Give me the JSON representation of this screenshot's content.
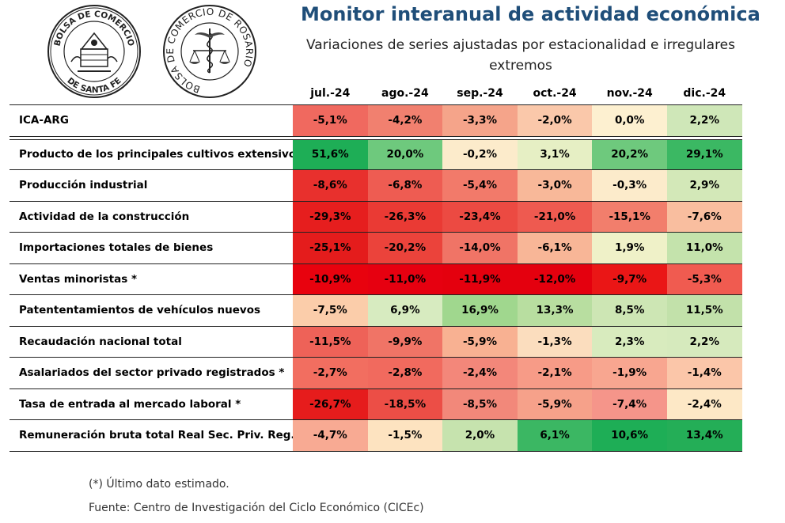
{
  "logos": [
    {
      "name": "bolsa-santa-fe-logo",
      "text_top": "BOLSA DE COMERCIO",
      "text_bottom": "DE SANTA FE"
    },
    {
      "name": "bolsa-rosario-logo",
      "text_ring": "BOLSA DE COMERCIO DE ROSARIO"
    }
  ],
  "header": {
    "title": "Monitor interanual de actividad económica",
    "subtitle": "Variaciones de series ajustadas por estacionalidad e irregulares extremos"
  },
  "chart_data": {
    "type": "heatmap",
    "title": "Monitor interanual de actividad económica",
    "subtitle": "Variaciones de series ajustadas por estacionalidad e irregulares extremos",
    "columns": [
      "jul.-24",
      "ago.-24",
      "sep.-24",
      "oct.-24",
      "nov.-24",
      "dic.-24"
    ],
    "rows": [
      {
        "label": "ICA-ARG",
        "display": [
          "-5,1%",
          "-4,2%",
          "-3,3%",
          "-2,0%",
          "0,0%",
          "2,2%"
        ],
        "values": [
          -5.1,
          -4.2,
          -3.3,
          -2.0,
          0.0,
          2.2
        ]
      },
      {
        "label": "Producto de los principales cultivos extensivos",
        "display": [
          "51,6%",
          "20,0%",
          "-0,2%",
          "3,1%",
          "20,2%",
          "29,1%"
        ],
        "values": [
          51.6,
          20.0,
          -0.2,
          3.1,
          20.2,
          29.1
        ]
      },
      {
        "label": "Producción industrial",
        "display": [
          "-8,6%",
          "-6,8%",
          "-5,4%",
          "-3,0%",
          "-0,3%",
          "2,9%"
        ],
        "values": [
          -8.6,
          -6.8,
          -5.4,
          -3.0,
          -0.3,
          2.9
        ]
      },
      {
        "label": "Actividad de la construcción",
        "display": [
          "-29,3%",
          "-26,3%",
          "-23,4%",
          "-21,0%",
          "-15,1%",
          "-7,6%"
        ],
        "values": [
          -29.3,
          -26.3,
          -23.4,
          -21.0,
          -15.1,
          -7.6
        ]
      },
      {
        "label": "Importaciones totales de bienes",
        "display": [
          "-25,1%",
          "-20,2%",
          "-14,0%",
          "-6,1%",
          "1,9%",
          "11,0%"
        ],
        "values": [
          -25.1,
          -20.2,
          -14.0,
          -6.1,
          1.9,
          11.0
        ]
      },
      {
        "label": "Ventas minoristas *",
        "display": [
          "-10,9%",
          "-11,0%",
          "-11,9%",
          "-12,0%",
          "-9,7%",
          "-5,3%"
        ],
        "values": [
          -10.9,
          -11.0,
          -11.9,
          -12.0,
          -9.7,
          -5.3
        ]
      },
      {
        "label": "Patententamientos de vehículos nuevos",
        "display": [
          "-7,5%",
          "6,9%",
          "16,9%",
          "13,3%",
          "8,5%",
          "11,5%"
        ],
        "values": [
          -7.5,
          6.9,
          16.9,
          13.3,
          8.5,
          11.5
        ]
      },
      {
        "label": "Recaudación nacional total",
        "display": [
          "-11,5%",
          "-9,9%",
          "-5,9%",
          "-1,3%",
          "2,3%",
          "2,2%"
        ],
        "values": [
          -11.5,
          -9.9,
          -5.9,
          -1.3,
          2.3,
          2.2
        ]
      },
      {
        "label": "Asalariados del sector privado registrados *",
        "display": [
          "-2,7%",
          "-2,8%",
          "-2,4%",
          "-2,1%",
          "-1,9%",
          "-1,4%"
        ],
        "values": [
          -2.7,
          -2.8,
          -2.4,
          -2.1,
          -1.9,
          -1.4
        ]
      },
      {
        "label": "Tasa de entrada al mercado laboral *",
        "display": [
          "-26,7%",
          "-18,5%",
          "-8,5%",
          "-5,9%",
          "-7,4%",
          "-2,4%"
        ],
        "values": [
          -26.7,
          -18.5,
          -8.5,
          -5.9,
          -7.4,
          -2.4
        ]
      },
      {
        "label": "Remuneración bruta total Real Sec. Priv. Reg.*",
        "display": [
          "-4,7%",
          "-1,5%",
          "2,0%",
          "6,1%",
          "10,6%",
          "13,4%"
        ],
        "values": [
          -4.7,
          -1.5,
          2.0,
          6.1,
          10.6,
          13.4
        ]
      }
    ],
    "cell_colors": [
      [
        "#f0695f",
        "#f1806f",
        "#f5a48a",
        "#fac8aa",
        "#fdf0d0",
        "#cfe7b8"
      ],
      [
        "#1eae56",
        "#6ec97d",
        "#fcebcb",
        "#e6efc4",
        "#6ec97d",
        "#3bb863"
      ],
      [
        "#e8302d",
        "#ee5c52",
        "#f27a6a",
        "#f8b899",
        "#fcebcb",
        "#d3e8b8"
      ],
      [
        "#e61e1e",
        "#ea3a34",
        "#ec4a42",
        "#ee5a50",
        "#f27e6c",
        "#f9be9f"
      ],
      [
        "#e41c1c",
        "#eb433b",
        "#f07466",
        "#f8b697",
        "#eff1c8",
        "#c4e3ac"
      ],
      [
        "#e8020e",
        "#e60010",
        "#e4000e",
        "#e4000e",
        "#ea1616",
        "#f05b50"
      ],
      [
        "#fbcdaa",
        "#d7ebc0",
        "#a0d78e",
        "#b8dea0",
        "#cde6b4",
        "#c2e1aa"
      ],
      [
        "#ee6258",
        "#f07466",
        "#f8b192",
        "#fbddbe",
        "#d8ebbe",
        "#d6eabd"
      ],
      [
        "#f26e60",
        "#f16a5e",
        "#f3877a",
        "#f79b87",
        "#f8a690",
        "#fbc6a9"
      ],
      [
        "#e61c1c",
        "#ec4e46",
        "#f2887a",
        "#f6a18a",
        "#f5958a",
        "#fde8c6"
      ],
      [
        "#f8aa93",
        "#fde3c0",
        "#c6e3ae",
        "#3bb763",
        "#1eae56",
        "#24ae57"
      ]
    ],
    "colorscale": "red (negative) to green (positive)"
  },
  "footer": {
    "note": "(*) Último dato estimado.",
    "source": "Fuente: Centro de Investigación del Ciclo Económico (CICEc)"
  }
}
